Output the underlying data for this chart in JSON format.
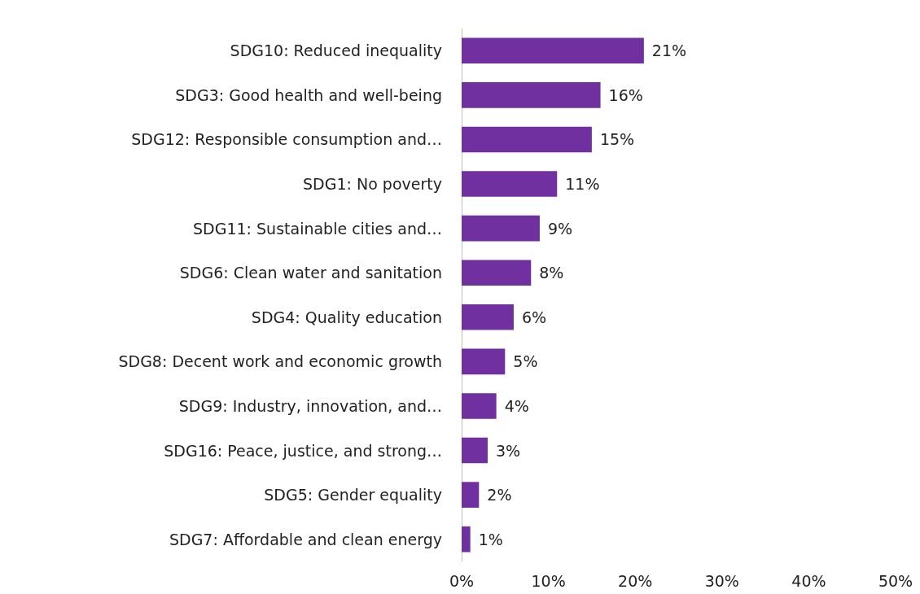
{
  "chart_data": {
    "type": "bar",
    "orientation": "horizontal",
    "categories": [
      "SDG10: Reduced inequality",
      "SDG3: Good health and well-being",
      "SDG12: Responsible consumption and…",
      "SDG1: No poverty",
      "SDG11: Sustainable cities and…",
      "SDG6: Clean water and sanitation",
      "SDG4: Quality education",
      "SDG8: Decent work and economic growth",
      "SDG9: Industry, innovation, and…",
      "SDG16: Peace, justice, and strong…",
      "SDG5: Gender equality",
      "SDG7: Affordable and clean energy"
    ],
    "values": [
      21,
      16,
      15,
      11,
      9,
      8,
      6,
      5,
      4,
      3,
      2,
      1
    ],
    "value_labels": [
      "21%",
      "16%",
      "15%",
      "11%",
      "9%",
      "8%",
      "6%",
      "5%",
      "4%",
      "3%",
      "2%",
      "1%"
    ],
    "color": "#7030a0",
    "xlim": [
      0,
      50
    ],
    "xticks": [
      {
        "value": 0,
        "label": "0%"
      },
      {
        "value": 10,
        "label": "10%"
      },
      {
        "value": 20,
        "label": "20%"
      },
      {
        "value": 30,
        "label": "30%"
      },
      {
        "value": 40,
        "label": "40%"
      },
      {
        "value": 50,
        "label": "50%"
      }
    ],
    "grid": false
  }
}
